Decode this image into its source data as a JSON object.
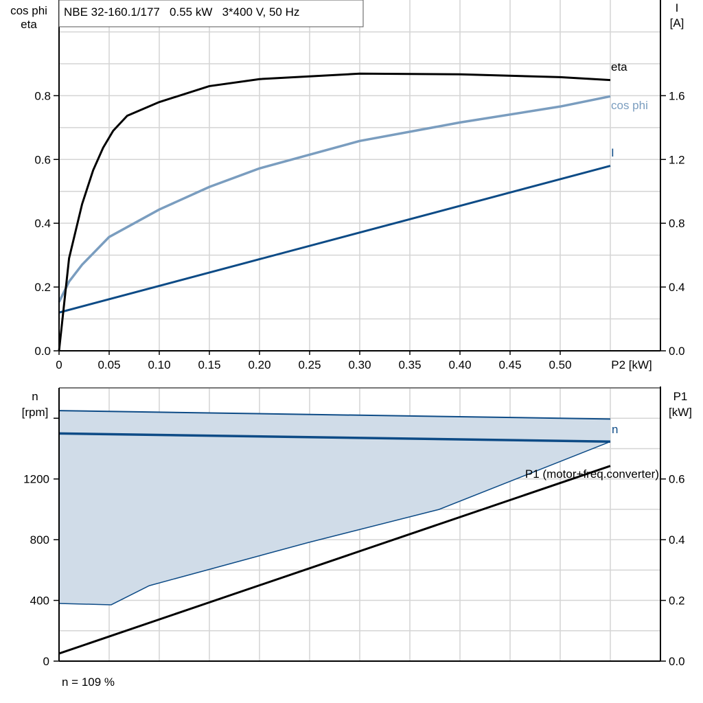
{
  "header": {
    "title": "NBE 32-160.1/177   0.55 kW   3*400 V, 50 Hz"
  },
  "footer": {
    "note": "n = 109 %"
  },
  "colors": {
    "eta": "#000000",
    "cos_phi": "#7a9dbf",
    "current": "#0d4b86",
    "speed": "#0d4b86",
    "band_fill": "#d0dce8",
    "p1": "#000000",
    "grid": "#d4d4d4"
  },
  "chart_data": [
    {
      "type": "line",
      "xlabel": "P2 [kW]",
      "ylabel_left": [
        "cos phi",
        "eta"
      ],
      "ylabel_right": [
        "I",
        "[A]"
      ],
      "xlim": [
        0,
        0.6
      ],
      "ylim_left": [
        0,
        1.1
      ],
      "ylim_right": [
        0,
        2.2
      ],
      "x_ticks": [
        "0",
        "0.05",
        "0.10",
        "0.15",
        "0.20",
        "0.25",
        "0.30",
        "0.35",
        "0.40",
        "0.45",
        "0.50"
      ],
      "y_ticks_left": [
        "0.0",
        "0.2",
        "0.4",
        "0.6",
        "0.8"
      ],
      "y_ticks_right": [
        "0.0",
        "0.4",
        "0.8",
        "1.2",
        "1.6"
      ],
      "grid": true,
      "series": [
        {
          "name": "eta",
          "axis": "left",
          "x": [
            0,
            0.01,
            0.023,
            0.034,
            0.044,
            0.054,
            0.068,
            0.1,
            0.15,
            0.2,
            0.3,
            0.4,
            0.5,
            0.55
          ],
          "y": [
            0,
            0.29,
            0.46,
            0.566,
            0.637,
            0.69,
            0.737,
            0.78,
            0.83,
            0.852,
            0.869,
            0.867,
            0.858,
            0.849
          ]
        },
        {
          "name": "cos phi",
          "axis": "left",
          "x": [
            0,
            0.01,
            0.023,
            0.05,
            0.1,
            0.15,
            0.2,
            0.3,
            0.4,
            0.5,
            0.55
          ],
          "y": [
            0.153,
            0.217,
            0.27,
            0.357,
            0.443,
            0.514,
            0.572,
            0.658,
            0.716,
            0.766,
            0.798
          ]
        },
        {
          "name": "I",
          "axis": "right",
          "x": [
            0,
            0.55
          ],
          "y": [
            0.24,
            1.16
          ]
        }
      ]
    },
    {
      "type": "area",
      "ylabel_left": [
        "n",
        "[rpm]"
      ],
      "ylabel_right": [
        "P1",
        "[kW]"
      ],
      "xlim": [
        0,
        0.6
      ],
      "ylim_left": [
        0,
        1800
      ],
      "ylim_right": [
        0,
        0.9
      ],
      "y_ticks_left": [
        "0",
        "400",
        "800",
        "1200"
      ],
      "y_ticks_right": [
        "0.0",
        "0.2",
        "0.4",
        "0.6"
      ],
      "grid": true,
      "band_upper": {
        "x": [
          0,
          0.55
        ],
        "y": [
          1650,
          1595
        ]
      },
      "band_lower": {
        "x": [
          0,
          0.052,
          0.09,
          0.249,
          0.379,
          0.55
        ],
        "y": [
          380,
          371,
          497,
          782,
          999,
          1446
        ]
      },
      "series": [
        {
          "name": "n",
          "axis": "left",
          "x": [
            0,
            0.55
          ],
          "y": [
            1500,
            1446
          ]
        },
        {
          "name": "P1 (motor+freq.converter)",
          "axis": "right",
          "x": [
            0,
            0.55
          ],
          "y": [
            0.025,
            0.643
          ]
        }
      ]
    }
  ]
}
